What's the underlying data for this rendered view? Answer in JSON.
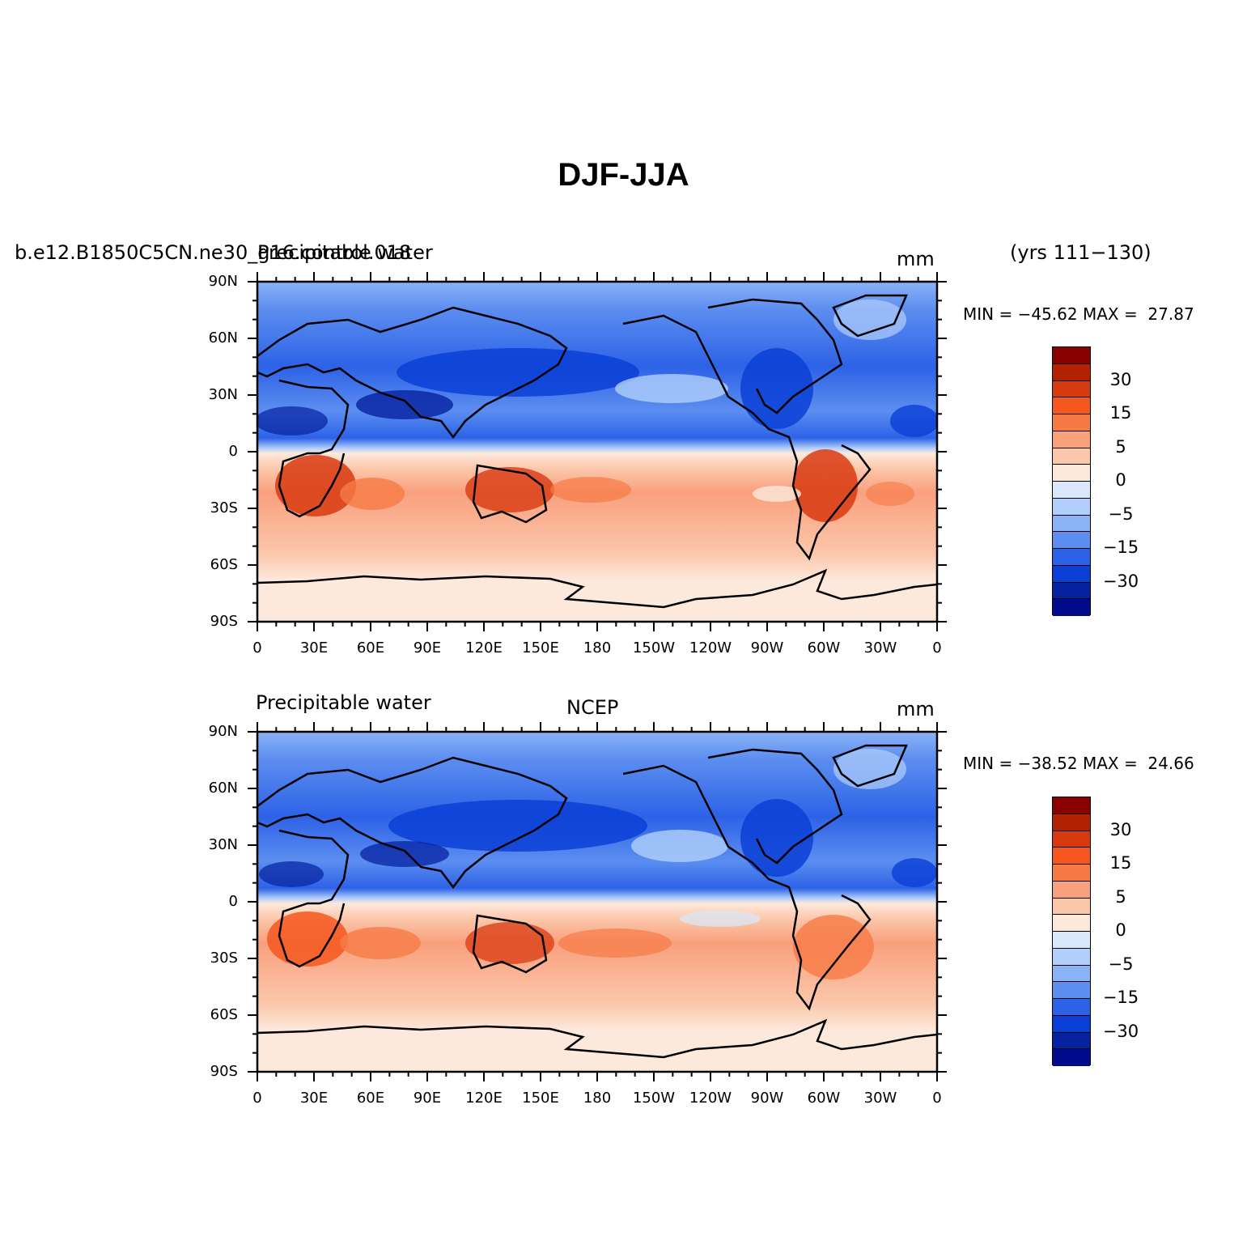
{
  "title": "DJF-JJA",
  "panels": [
    {
      "left_label": "b.e12.B1850C5CN.ne30_g16.control.018",
      "center_label": "Precipitable water",
      "right_label": "mm",
      "yrs_label": "(yrs 111−130)",
      "stats": "MIN = −45.62 MAX =  27.87"
    },
    {
      "left_label": "Precipitable water",
      "center_label": "NCEP",
      "right_label": "mm",
      "stats": "MIN = −38.52 MAX =  24.66"
    }
  ],
  "axes": {
    "x_ticks": [
      "0",
      "30E",
      "60E",
      "90E",
      "120E",
      "150E",
      "180",
      "150W",
      "120W",
      "90W",
      "60W",
      "30W",
      "0"
    ],
    "y_ticks": [
      "90N",
      "60N",
      "30N",
      "0",
      "30S",
      "60S",
      "90S"
    ]
  },
  "colorbar": {
    "colors": [
      "#8b0000",
      "#b22200",
      "#d83a10",
      "#f5571f",
      "#f77a46",
      "#f9a07d",
      "#fbc7ab",
      "#fde9dc",
      "#d9e9fb",
      "#b2cffb",
      "#8bb3f7",
      "#5c8ef0",
      "#2d62e6",
      "#0a3fd6",
      "#0622a0",
      "#000a8a"
    ],
    "labels": [
      "30",
      "15",
      "5",
      "0",
      "−5",
      "−15",
      "−30"
    ]
  },
  "chart_data": [
    {
      "type": "heatmap",
      "title": "DJF-JJA",
      "subtitle": "b.e12.B1850C5CN.ne30_g16.control.018 Precipitable water (yrs 111−130)",
      "units": "mm",
      "xlim": [
        0,
        360
      ],
      "ylim": [
        -90,
        90
      ],
      "min": -45.62,
      "max": 27.87,
      "contour_levels": [
        -40,
        -35,
        -30,
        -25,
        -20,
        -15,
        -10,
        -5,
        -2.5,
        0,
        2.5,
        5,
        10,
        15,
        20,
        25,
        30
      ]
    },
    {
      "type": "heatmap",
      "title": "DJF-JJA",
      "subtitle": "Precipitable water NCEP",
      "units": "mm",
      "xlim": [
        0,
        360
      ],
      "ylim": [
        -90,
        90
      ],
      "min": -38.52,
      "max": 24.66,
      "contour_levels": [
        -40,
        -35,
        -30,
        -25,
        -20,
        -15,
        -10,
        -5,
        -2.5,
        0,
        2.5,
        5,
        10,
        15,
        20,
        25,
        30
      ]
    }
  ]
}
